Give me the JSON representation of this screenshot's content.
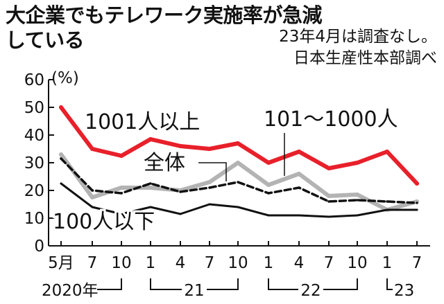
{
  "title": {
    "line1": "大企業でもテレワーク実施率が急減",
    "line2": "している"
  },
  "notes": [
    "23年4月は調査なし。",
    "日本生産性本部調べ"
  ],
  "chart_data": {
    "type": "line",
    "title": "大企業でもテレワーク実施率が急減している",
    "y_unit": "(%)",
    "ylim": [
      0,
      60
    ],
    "yticks": [
      0,
      10,
      20,
      30,
      40,
      50,
      60
    ],
    "grid": false,
    "x": [
      "2020-05",
      "2020-07",
      "2020-10",
      "2021-01",
      "2021-04",
      "2021-07",
      "2021-10",
      "2022-01",
      "2022-04",
      "2022-07",
      "2022-10",
      "2023-01",
      "2023-07"
    ],
    "x_tick_labels": [
      "5月",
      "7",
      "10",
      "1",
      "4",
      "7",
      "10",
      "1",
      "4",
      "7",
      "10",
      "1",
      "7"
    ],
    "x_group_labels": [
      {
        "label": "2020年",
        "from": "2020-05",
        "to": "2020-10"
      },
      {
        "label": "21",
        "from": "2021-01",
        "to": "2021-10"
      },
      {
        "label": "22",
        "from": "2022-01",
        "to": "2022-10"
      },
      {
        "label": "23",
        "from": "2023-01",
        "to": "2023-07"
      }
    ],
    "series": [
      {
        "name": "1001人以上",
        "color": "#e8202a",
        "style": "solid-thick",
        "values": [
          50,
          35,
          32.5,
          38.5,
          36,
          35,
          37,
          30,
          34,
          28,
          30,
          34,
          22.5
        ]
      },
      {
        "name": "101～1000人",
        "color": "#b3b3b3",
        "style": "solid-thick",
        "values": [
          33,
          17.5,
          21,
          21,
          20,
          23,
          30,
          22,
          26,
          18,
          18.5,
          13,
          16
        ]
      },
      {
        "name": "全体",
        "color": "#111111",
        "style": "dashed",
        "values": [
          31.5,
          20,
          19,
          22.5,
          19.5,
          21,
          23,
          19,
          21,
          16,
          16.5,
          16,
          15.5
        ]
      },
      {
        "name": "100人以下",
        "color": "#111111",
        "style": "solid-thin",
        "values": [
          22.5,
          14,
          11.5,
          14,
          11.5,
          15,
          14,
          11,
          11,
          10.5,
          11,
          13,
          13
        ]
      }
    ]
  }
}
